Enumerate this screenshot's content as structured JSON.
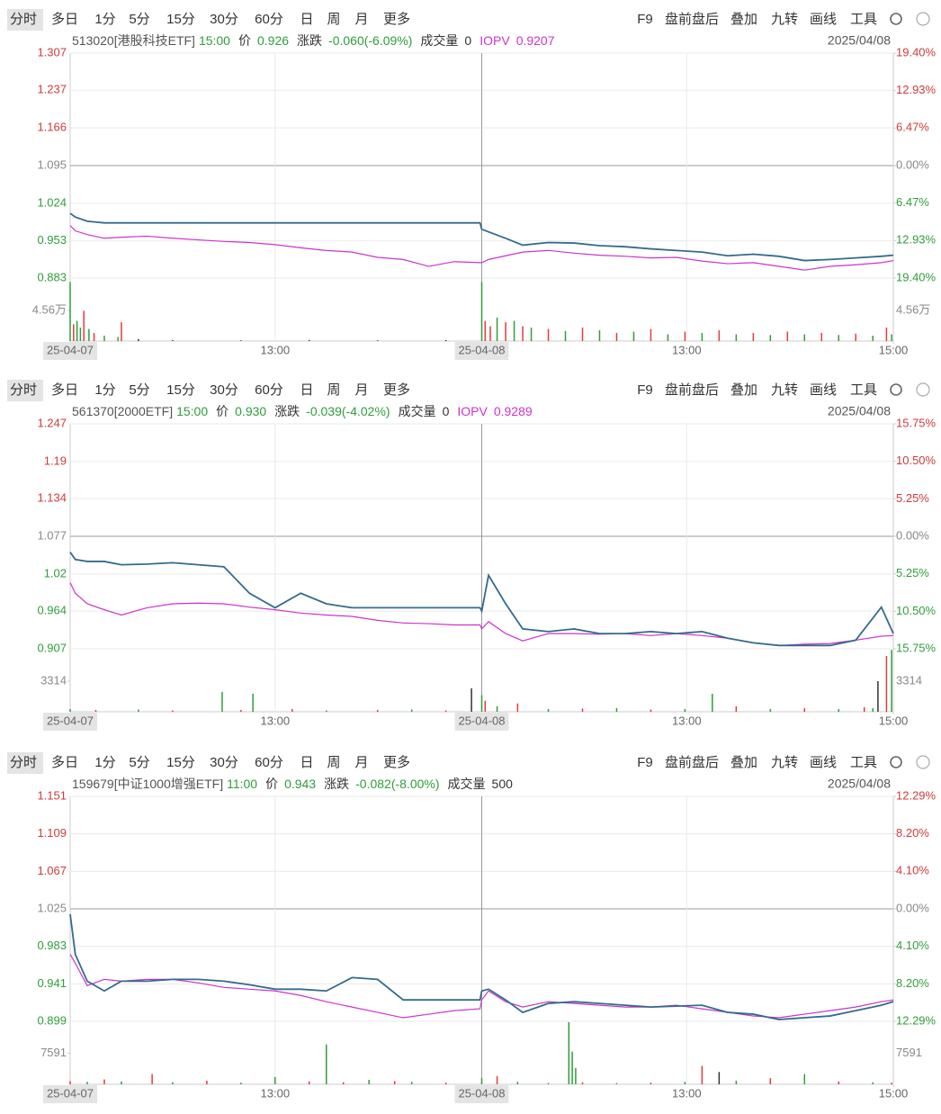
{
  "toolbar": {
    "tabs": [
      "分时",
      "多日",
      "1分",
      "5分",
      "15分",
      "30分",
      "60分",
      "日",
      "周",
      "月",
      "更多"
    ],
    "tools": [
      "F9",
      "盘前盘后",
      "叠加",
      "九转",
      "画线",
      "工具"
    ]
  },
  "chart_data": [
    {
      "type": "line",
      "info": {
        "name": "513020[港股科技ETF]",
        "time": "15:00",
        "fields": [
          {
            "label": "价",
            "value": "0.926",
            "color": "#2e9e3a"
          },
          {
            "label": "涨跌",
            "value": "-0.060(-6.09%)",
            "color": "#2e9e3a"
          },
          {
            "label": "成交量",
            "value": "0",
            "color": "#333333"
          },
          {
            "label": "IOPV",
            "value": "0.9207",
            "color": "#cc33cc",
            "label_color": "#cc33cc"
          }
        ],
        "date": "2025/04/08"
      },
      "x": [
        0,
        3,
        10,
        20,
        30,
        45,
        60,
        75,
        90,
        105,
        120,
        135,
        150,
        165,
        180,
        195,
        210,
        225,
        240,
        241,
        245,
        255,
        265,
        280,
        295,
        310,
        325,
        340,
        355,
        370,
        385,
        400,
        415,
        430,
        445,
        460,
        475,
        482
      ],
      "series": [
        {
          "color": "#336b8e",
          "values": [
            1.005,
            0.998,
            0.99,
            0.987,
            0.987,
            0.987,
            0.987,
            0.987,
            0.987,
            0.987,
            0.987,
            0.987,
            0.987,
            0.987,
            0.987,
            0.987,
            0.987,
            0.987,
            0.987,
            0.975,
            0.97,
            0.958,
            0.945,
            0.95,
            0.949,
            0.944,
            0.942,
            0.938,
            0.935,
            0.932,
            0.925,
            0.928,
            0.924,
            0.916,
            0.918,
            0.921,
            0.924,
            0.926
          ]
        },
        {
          "color": "#cc33cc",
          "values": [
            0.982,
            0.972,
            0.965,
            0.958,
            0.96,
            0.962,
            0.958,
            0.955,
            0.952,
            0.95,
            0.946,
            0.94,
            0.935,
            0.932,
            0.922,
            0.918,
            0.905,
            0.914,
            0.912,
            0.912,
            0.918,
            0.925,
            0.932,
            0.935,
            0.93,
            0.926,
            0.924,
            0.921,
            0.922,
            0.915,
            0.91,
            0.912,
            0.905,
            0.898,
            0.905,
            0.908,
            0.912,
            0.916
          ]
        }
      ],
      "xlim": [
        0,
        482
      ],
      "xticks": [
        {
          "value": 0,
          "label": "25-04-07"
        },
        {
          "value": 120,
          "label": "13:00"
        },
        {
          "value": 241,
          "label": "25-04-08"
        },
        {
          "value": 361,
          "label": "13:00"
        },
        {
          "value": 482,
          "label": "15:00"
        }
      ],
      "ylim": [
        0.883,
        1.307
      ],
      "yticks": [
        1.307,
        1.237,
        1.166,
        1.095,
        1.024,
        0.953,
        0.883
      ],
      "y2lim": [
        -19.4,
        19.4
      ],
      "y2ticks": [
        {
          "value": 19.4,
          "label": "19.40%"
        },
        {
          "value": 12.93,
          "label": "12.93%"
        },
        {
          "value": 6.47,
          "label": "6.47%"
        },
        {
          "value": 0,
          "label": "0.00%"
        },
        {
          "value": -6.47,
          "label": "6.47%"
        },
        {
          "value": -12.93,
          "label": "12.93%"
        },
        {
          "value": -19.4,
          "label": "19.40%"
        }
      ],
      "volume": {
        "ylim": [
          0,
          93900
        ],
        "yticks": [
          {
            "value": 45600,
            "label": "4.56万"
          }
        ],
        "x": [
          0,
          2,
          4,
          6,
          8,
          11,
          14,
          20,
          28,
          30,
          40,
          60,
          100,
          140,
          180,
          220,
          241,
          243,
          246,
          250,
          255,
          260,
          265,
          270,
          280,
          290,
          300,
          310,
          320,
          330,
          340,
          350,
          360,
          370,
          380,
          390,
          400,
          410,
          420,
          430,
          440,
          450,
          460,
          470,
          478,
          481
        ],
        "values": [
          88000,
          25000,
          30000,
          20000,
          45000,
          18000,
          12000,
          8000,
          6000,
          28000,
          3000,
          1500,
          1000,
          1500,
          1000,
          1500,
          88000,
          30000,
          22000,
          35000,
          28000,
          30000,
          22000,
          20000,
          18000,
          15000,
          20000,
          16000,
          12000,
          14000,
          18000,
          10000,
          14000,
          12000,
          16000,
          10000,
          12000,
          9000,
          14000,
          10000,
          12000,
          9000,
          11000,
          8000,
          20000,
          10000
        ],
        "colors": [
          "#2e9e3a",
          "#e8393a",
          "#2e9e3a",
          "#2e9e3a",
          "#e8393a",
          "#2e9e3a",
          "#e8393a",
          "#2e9e3a",
          "#2e9e3a",
          "#e8393a",
          "#333333",
          "#333333",
          "#333333",
          "#333333",
          "#333333",
          "#333333",
          "#2e9e3a",
          "#e8393a",
          "#e8393a",
          "#2e9e3a",
          "#e8393a",
          "#2e9e3a",
          "#e8393a",
          "#2e9e3a",
          "#e8393a",
          "#2e9e3a",
          "#e8393a",
          "#2e9e3a",
          "#e8393a",
          "#2e9e3a",
          "#e8393a",
          "#2e9e3a",
          "#e8393a",
          "#2e9e3a",
          "#e8393a",
          "#2e9e3a",
          "#e8393a",
          "#2e9e3a",
          "#e8393a",
          "#2e9e3a",
          "#e8393a",
          "#2e9e3a",
          "#e8393a",
          "#2e9e3a",
          "#e8393a",
          "#2e9e3a"
        ]
      }
    },
    {
      "type": "line",
      "info": {
        "name": "561370[2000ETF]",
        "time": "15:00",
        "fields": [
          {
            "label": "价",
            "value": "0.930",
            "color": "#2e9e3a"
          },
          {
            "label": "涨跌",
            "value": "-0.039(-4.02%)",
            "color": "#2e9e3a"
          },
          {
            "label": "成交量",
            "value": "0",
            "color": "#333333"
          },
          {
            "label": "IOPV",
            "value": "0.9289",
            "color": "#cc33cc",
            "label_color": "#cc33cc"
          }
        ],
        "date": "2025/04/08"
      },
      "x": [
        0,
        3,
        10,
        20,
        30,
        45,
        60,
        75,
        90,
        105,
        120,
        135,
        150,
        165,
        180,
        195,
        210,
        225,
        240,
        241,
        245,
        255,
        265,
        280,
        295,
        310,
        325,
        340,
        355,
        370,
        385,
        400,
        415,
        430,
        445,
        460,
        475,
        482
      ],
      "series": [
        {
          "color": "#336b8e",
          "values": [
            1.053,
            1.042,
            1.039,
            1.039,
            1.034,
            1.035,
            1.037,
            1.034,
            1.031,
            0.991,
            0.969,
            0.991,
            0.975,
            0.969,
            0.969,
            0.969,
            0.969,
            0.969,
            0.969,
            0.964,
            1.018,
            0.975,
            0.937,
            0.933,
            0.937,
            0.93,
            0.93,
            0.933,
            0.93,
            0.933,
            0.923,
            0.916,
            0.912,
            0.912,
            0.912,
            0.92,
            0.97,
            0.93
          ]
        },
        {
          "color": "#cc33cc",
          "values": [
            1.007,
            0.991,
            0.975,
            0.966,
            0.958,
            0.969,
            0.975,
            0.976,
            0.975,
            0.97,
            0.966,
            0.961,
            0.958,
            0.956,
            0.95,
            0.946,
            0.945,
            0.943,
            0.943,
            0.937,
            0.948,
            0.93,
            0.919,
            0.93,
            0.93,
            0.929,
            0.93,
            0.927,
            0.93,
            0.927,
            0.923,
            0.916,
            0.912,
            0.914,
            0.915,
            0.92,
            0.926,
            0.927
          ]
        }
      ],
      "xlim": [
        0,
        482
      ],
      "xticks": [
        {
          "value": 0,
          "label": "25-04-07"
        },
        {
          "value": 120,
          "label": "13:00"
        },
        {
          "value": 241,
          "label": "25-04-08"
        },
        {
          "value": 361,
          "label": "13:00"
        },
        {
          "value": 482,
          "label": "15:00"
        }
      ],
      "ylim": [
        0.907,
        1.247
      ],
      "yticks": [
        1.247,
        1.19,
        1.134,
        1.077,
        1.02,
        0.964,
        0.907
      ],
      "y2lim": [
        -15.75,
        15.75
      ],
      "y2ticks": [
        {
          "value": 15.75,
          "label": "15.75%"
        },
        {
          "value": 10.5,
          "label": "10.50%"
        },
        {
          "value": 5.25,
          "label": "5.25%"
        },
        {
          "value": 0,
          "label": "0.00%"
        },
        {
          "value": -5.25,
          "label": "5.25%"
        },
        {
          "value": -10.5,
          "label": "10.50%"
        },
        {
          "value": -15.75,
          "label": "15.75%"
        }
      ],
      "volume": {
        "ylim": [
          0,
          6824
        ],
        "yticks": [
          3314
        ],
        "x": [
          0,
          15,
          40,
          60,
          89,
          100,
          107,
          130,
          150,
          180,
          200,
          220,
          235,
          241,
          243,
          250,
          262,
          280,
          300,
          320,
          340,
          360,
          376,
          390,
          410,
          430,
          450,
          465,
          470,
          473,
          478,
          481
        ],
        "values": [
          300,
          200,
          250,
          150,
          2145,
          200,
          1950,
          300,
          150,
          200,
          250,
          150,
          2535,
          1800,
          1200,
          600,
          900,
          300,
          350,
          400,
          250,
          300,
          1950,
          600,
          300,
          400,
          300,
          500,
          400,
          3314,
          6044,
          6700
        ],
        "colors": [
          "#2e9e3a",
          "#e8393a",
          "#2e9e3a",
          "#e8393a",
          "#2e9e3a",
          "#e8393a",
          "#2e9e3a",
          "#e8393a",
          "#2e9e3a",
          "#e8393a",
          "#2e9e3a",
          "#e8393a",
          "#333333",
          "#2e9e3a",
          "#e8393a",
          "#2e9e3a",
          "#e8393a",
          "#2e9e3a",
          "#e8393a",
          "#2e9e3a",
          "#e8393a",
          "#2e9e3a",
          "#2e9e3a",
          "#e8393a",
          "#2e9e3a",
          "#e8393a",
          "#2e9e3a",
          "#e8393a",
          "#2e9e3a",
          "#333333",
          "#e8393a",
          "#2e9e3a"
        ]
      }
    },
    {
      "type": "line",
      "info": {
        "name": "159679[中证1000增强ETF]",
        "time": "11:00",
        "fields": [
          {
            "label": "价",
            "value": "0.943",
            "color": "#2e9e3a"
          },
          {
            "label": "涨跌",
            "value": "-0.082(-8.00%)",
            "color": "#2e9e3a"
          },
          {
            "label": "成交量",
            "value": "500",
            "color": "#333333"
          }
        ],
        "date": "2025/04/08"
      },
      "x": [
        0,
        3,
        10,
        20,
        30,
        45,
        60,
        75,
        90,
        105,
        120,
        135,
        150,
        165,
        180,
        195,
        210,
        225,
        240,
        241,
        245,
        255,
        265,
        280,
        295,
        310,
        325,
        340,
        355,
        370,
        385,
        400,
        415,
        430,
        445,
        460,
        475,
        482
      ],
      "series": [
        {
          "color": "#336b8e",
          "values": [
            1.019,
            0.974,
            0.944,
            0.933,
            0.944,
            0.944,
            0.946,
            0.946,
            0.944,
            0.94,
            0.935,
            0.935,
            0.933,
            0.948,
            0.946,
            0.923,
            0.923,
            0.923,
            0.923,
            0.933,
            0.935,
            0.923,
            0.909,
            0.919,
            0.921,
            0.919,
            0.917,
            0.915,
            0.916,
            0.917,
            0.909,
            0.907,
            0.901,
            0.903,
            0.905,
            0.911,
            0.917,
            0.921
          ]
        },
        {
          "color": "#cc33cc",
          "values": [
            0.974,
            0.964,
            0.939,
            0.946,
            0.944,
            0.946,
            0.946,
            0.942,
            0.937,
            0.935,
            0.933,
            0.928,
            0.921,
            0.915,
            0.909,
            0.903,
            0.907,
            0.911,
            0.913,
            0.923,
            0.933,
            0.921,
            0.915,
            0.921,
            0.919,
            0.917,
            0.915,
            0.915,
            0.917,
            0.913,
            0.909,
            0.905,
            0.903,
            0.907,
            0.911,
            0.915,
            0.921,
            0.923
          ]
        }
      ],
      "xlim": [
        0,
        482
      ],
      "xticks": [
        {
          "value": 0,
          "label": "25-04-07"
        },
        {
          "value": 120,
          "label": "13:00"
        },
        {
          "value": 241,
          "label": "25-04-08"
        },
        {
          "value": 361,
          "label": "13:00"
        },
        {
          "value": 482,
          "label": "15:00"
        }
      ],
      "ylim": [
        0.899,
        1.151
      ],
      "yticks": [
        1.151,
        1.109,
        1.067,
        1.025,
        0.983,
        0.941,
        0.899
      ],
      "y2lim": [
        -12.29,
        12.29
      ],
      "y2ticks": [
        {
          "value": 12.29,
          "label": "12.29%"
        },
        {
          "value": 8.2,
          "label": "8.20%"
        },
        {
          "value": 4.1,
          "label": "4.10%"
        },
        {
          "value": 0,
          "label": "0.00%"
        },
        {
          "value": -4.1,
          "label": "4.10%"
        },
        {
          "value": -8.2,
          "label": "8.20%"
        },
        {
          "value": -12.29,
          "label": "12.29%"
        }
      ],
      "volume": {
        "ylim": [
          0,
          15400
        ],
        "yticks": [
          7591
        ],
        "x": [
          0,
          10,
          20,
          30,
          48,
          60,
          80,
          100,
          120,
          140,
          150,
          160,
          175,
          190,
          200,
          220,
          241,
          250,
          262,
          280,
          292,
          294,
          296,
          300,
          320,
          340,
          360,
          370,
          380,
          390,
          410,
          430,
          450,
          470,
          481
        ],
        "values": [
          800,
          600,
          1200,
          700,
          2500,
          500,
          900,
          400,
          1800,
          700,
          9760,
          500,
          1100,
          800,
          600,
          400,
          1500,
          2000,
          600,
          300,
          15200,
          8000,
          4000,
          500,
          300,
          400,
          600,
          4500,
          3000,
          900,
          1500,
          2500,
          700,
          500,
          400
        ],
        "colors": [
          "#e8393a",
          "#2e9e3a",
          "#e8393a",
          "#2e9e3a",
          "#e8393a",
          "#2e9e3a",
          "#e8393a",
          "#2e9e3a",
          "#2e9e3a",
          "#e8393a",
          "#2e9e3a",
          "#e8393a",
          "#2e9e3a",
          "#e8393a",
          "#2e9e3a",
          "#e8393a",
          "#2e9e3a",
          "#e8393a",
          "#2e9e3a",
          "#e8393a",
          "#2e9e3a",
          "#2e9e3a",
          "#2e9e3a",
          "#e8393a",
          "#2e9e3a",
          "#e8393a",
          "#2e9e3a",
          "#e8393a",
          "#333333",
          "#2e9e3a",
          "#e8393a",
          "#2e9e3a",
          "#e8393a",
          "#2e9e3a",
          "#e8393a"
        ]
      }
    }
  ]
}
